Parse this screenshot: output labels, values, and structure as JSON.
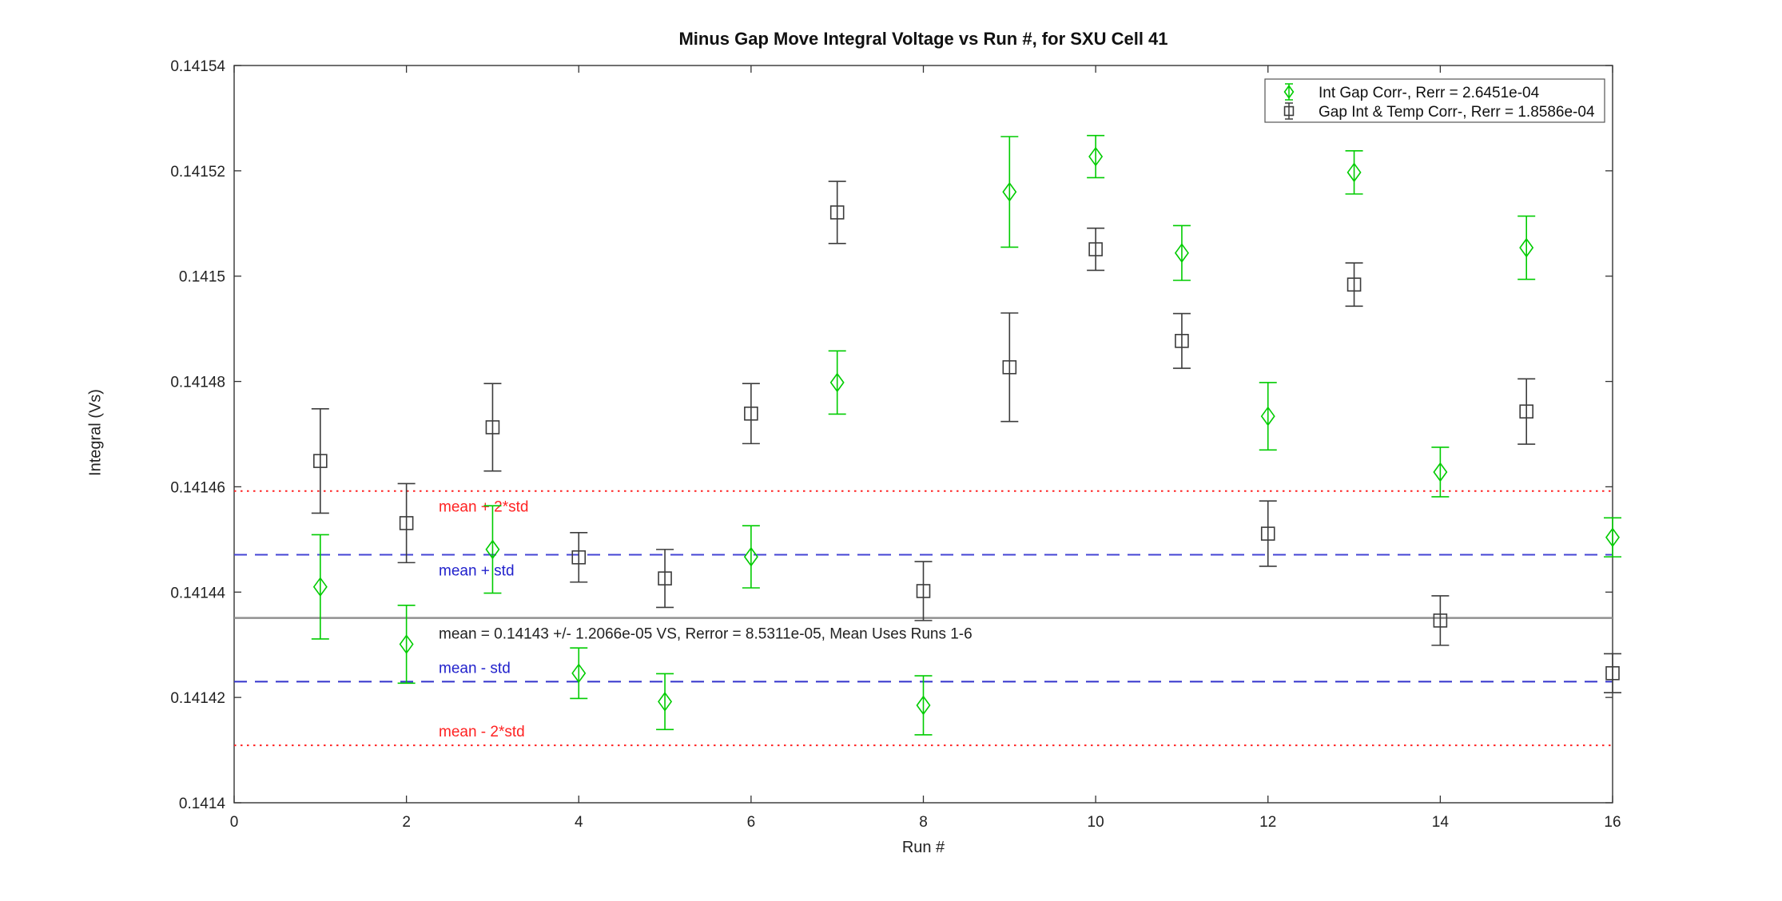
{
  "window": {
    "background": "#ffffff"
  },
  "chart_data": {
    "type": "scatter",
    "title": "Minus Gap Move Integral Voltage vs Run #, for SXU Cell 41",
    "xlabel": "Run #",
    "ylabel": "Integral (Vs)",
    "xlim": [
      0,
      16
    ],
    "ylim": [
      0.1414,
      0.14154
    ],
    "xticks": [
      0,
      2,
      4,
      6,
      8,
      10,
      12,
      14,
      16
    ],
    "xtick_labels": [
      "0",
      "2",
      "4",
      "6",
      "8",
      "10",
      "12",
      "14",
      "16"
    ],
    "yticks": [
      0.1414,
      0.14142,
      0.14144,
      0.14146,
      0.14148,
      0.1415,
      0.14152,
      0.14154
    ],
    "ytick_labels": [
      "0.1414",
      "0.14142",
      "0.14144",
      "0.14146",
      "0.14148",
      "0.1415",
      "0.14152",
      "0.14154"
    ],
    "grid": false,
    "legend_position": "top-right",
    "axis_color": "#333333",
    "series": [
      {
        "key": "int-gap-corr",
        "name": "Int Gap Corr-, Rerr = 2.6451e-04",
        "marker": "diamond",
        "color": "#00cc00",
        "x": [
          1,
          2,
          3,
          4,
          5,
          6,
          7,
          8,
          9,
          10,
          11,
          12,
          13,
          14,
          15,
          16
        ],
        "y": [
          0.141441,
          0.1414301,
          0.1414481,
          0.1414246,
          0.1414192,
          0.1414467,
          0.1414798,
          0.1414185,
          0.141516,
          0.1415227,
          0.1415044,
          0.1414734,
          0.1415197,
          0.1414628,
          0.1415054,
          0.1414504
        ],
        "yerr": [
          9.9e-06,
          7.4e-06,
          8.3e-06,
          4.8e-06,
          5.3e-06,
          5.9e-06,
          6e-06,
          5.6e-06,
          1.05e-05,
          4e-06,
          5.2e-06,
          6.4e-06,
          4.1e-06,
          4.7e-06,
          6e-06,
          3.7e-06
        ]
      },
      {
        "key": "gap-int-temp-corr",
        "name": "Gap Int & Temp Corr-, Rerr = 1.8586e-04",
        "marker": "square",
        "color": "#3c3c3c",
        "x": [
          1,
          2,
          3,
          4,
          5,
          6,
          7,
          8,
          9,
          10,
          11,
          12,
          13,
          14,
          15,
          16
        ],
        "y": [
          0.1414649,
          0.1414531,
          0.1414713,
          0.1414466,
          0.1414426,
          0.1414739,
          0.1415121,
          0.1414402,
          0.1414827,
          0.1415051,
          0.1414877,
          0.1414511,
          0.1414984,
          0.1414346,
          0.1414743,
          0.1414246
        ],
        "yerr": [
          9.9e-06,
          7.5e-06,
          8.3e-06,
          4.7e-06,
          5.5e-06,
          5.7e-06,
          5.9e-06,
          5.6e-06,
          1.03e-05,
          4e-06,
          5.2e-06,
          6.2e-06,
          4.1e-06,
          4.7e-06,
          6.2e-06,
          3.7e-06
        ]
      }
    ],
    "reference_lines": [
      {
        "key": "mean-plus-2std",
        "label": "mean + 2*std",
        "value": 0.1414592,
        "style": "dotted",
        "color": "#ff2222",
        "label_color": "#ff2222",
        "label_side": "below"
      },
      {
        "key": "mean-plus-std",
        "label": "mean + std",
        "value": 0.1414471,
        "style": "dashed",
        "color": "#4444d4",
        "label_color": "#2222cc",
        "label_side": "below"
      },
      {
        "key": "mean",
        "label": "mean = 0.14143 +/- 1.2066e-05 VS, Rerror = 8.5311e-05, Mean Uses Runs 1-6",
        "value": 0.1414351,
        "style": "solid",
        "color": "#909090",
        "label_color": "#222222",
        "label_side": "below"
      },
      {
        "key": "mean-minus-std",
        "label": "mean - std",
        "value": 0.141423,
        "style": "dashed",
        "color": "#3333cc",
        "label_color": "#2222cc",
        "label_side": "above"
      },
      {
        "key": "mean-minus-2std",
        "label": "mean - 2*std",
        "value": 0.1414109,
        "style": "dotted",
        "color": "#ff2222",
        "label_color": "#ff2222",
        "label_side": "above"
      }
    ]
  }
}
